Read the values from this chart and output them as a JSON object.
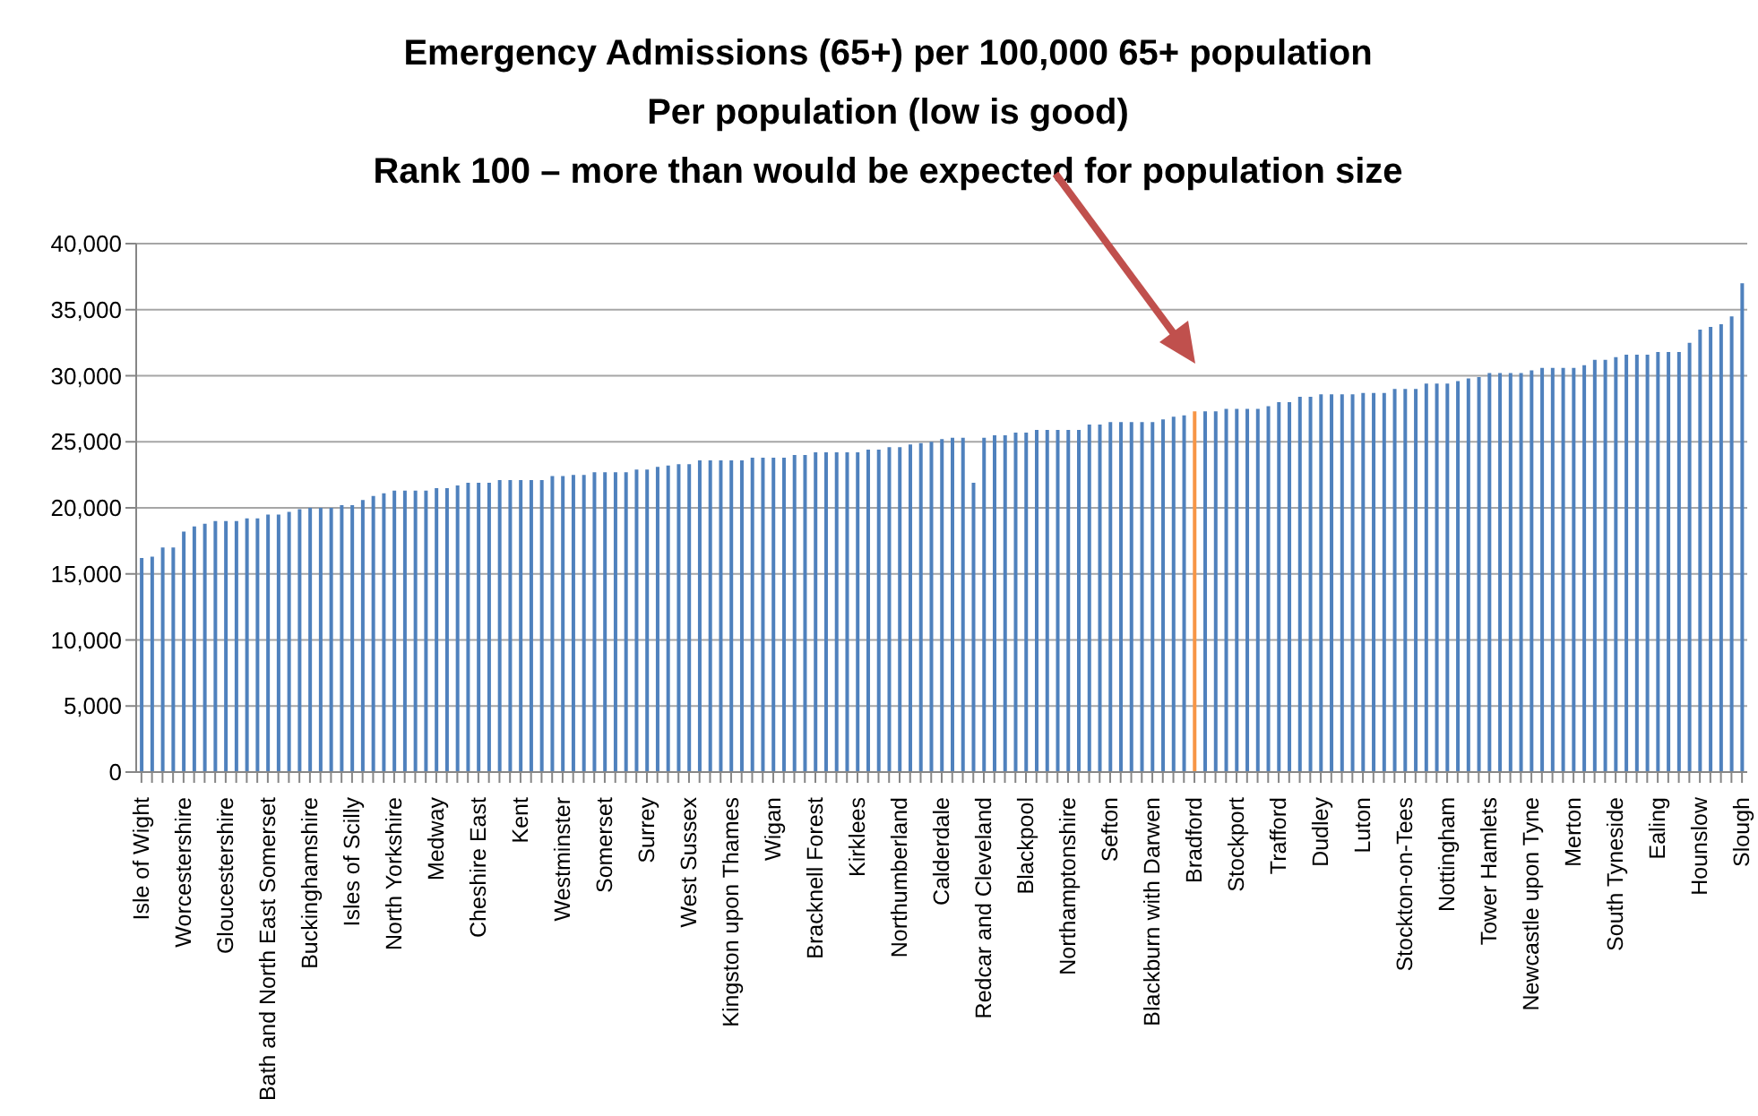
{
  "chart_data": {
    "type": "bar",
    "title": "Emergency Admissions (65+) per 100,000 65+ population\nPer population (low is good)\nRank 100 – more than would be expected for population size",
    "categories": [
      "Isle of Wight",
      null,
      null,
      null,
      "Worcestershire",
      null,
      null,
      null,
      "Gloucestershire",
      null,
      null,
      null,
      "Bath and North East Somerset",
      null,
      null,
      null,
      "Buckinghamshire",
      null,
      null,
      null,
      "Isles of Scilly",
      null,
      null,
      null,
      "North Yorkshire",
      null,
      null,
      null,
      "Medway",
      null,
      null,
      null,
      "Cheshire East",
      null,
      null,
      null,
      "Kent",
      null,
      null,
      null,
      "Westminster",
      null,
      null,
      null,
      "Somerset",
      null,
      null,
      null,
      "Surrey",
      null,
      null,
      null,
      "West Sussex",
      null,
      null,
      null,
      "Kingston upon Thames",
      null,
      null,
      null,
      "Wigan",
      null,
      null,
      null,
      "Bracknell Forest",
      null,
      null,
      null,
      "Kirklees",
      null,
      null,
      null,
      "Northumberland",
      null,
      null,
      null,
      "Calderdale",
      null,
      null,
      null,
      "Redcar and Cleveland",
      null,
      null,
      null,
      "Blackpool",
      null,
      null,
      null,
      "Northamptonshire",
      null,
      null,
      null,
      "Sefton",
      null,
      null,
      null,
      "Blackburn with Darwen",
      null,
      null,
      null,
      "Bradford",
      null,
      null,
      null,
      "Stockport",
      null,
      null,
      null,
      "Trafford",
      null,
      null,
      null,
      "Dudley",
      null,
      null,
      null,
      "Luton",
      null,
      null,
      null,
      "Stockton-on-Tees",
      null,
      null,
      null,
      "Nottingham",
      null,
      null,
      null,
      "Tower Hamlets",
      null,
      null,
      null,
      "Newcastle upon Tyne",
      null,
      null,
      null,
      "Merton",
      null,
      null,
      null,
      "South Tyneside",
      null,
      null,
      null,
      "Ealing",
      null,
      null,
      null,
      "Hounslow",
      null,
      null,
      null,
      "Slough"
    ],
    "values": [
      16200,
      16300,
      17000,
      17000,
      18200,
      18600,
      18800,
      19000,
      19000,
      19000,
      19200,
      19200,
      19500,
      19500,
      19700,
      19900,
      20000,
      20000,
      20000,
      20200,
      20200,
      20600,
      20900,
      21100,
      21300,
      21300,
      21300,
      21300,
      21500,
      21500,
      21700,
      21900,
      21900,
      21900,
      22100,
      22100,
      22100,
      22100,
      22100,
      22400,
      22400,
      22500,
      22500,
      22700,
      22700,
      22700,
      22700,
      22900,
      22900,
      23100,
      23200,
      23300,
      23300,
      23600,
      23600,
      23600,
      23600,
      23600,
      23800,
      23800,
      23800,
      23800,
      24000,
      24000,
      24200,
      24200,
      24200,
      24200,
      24200,
      24400,
      24400,
      24600,
      24600,
      24800,
      24900,
      25000,
      25200,
      25300,
      25300,
      21900,
      25300,
      25500,
      25500,
      25700,
      25700,
      25900,
      25900,
      25900,
      25900,
      25900,
      26300,
      26300,
      26500,
      26500,
      26500,
      26500,
      26500,
      26700,
      26900,
      27000,
      27300,
      27300,
      27300,
      27500,
      27500,
      27500,
      27500,
      27700,
      28000,
      28000,
      28400,
      28400,
      28600,
      28600,
      28600,
      28600,
      28700,
      28700,
      28700,
      29000,
      29000,
      29000,
      29400,
      29400,
      29400,
      29600,
      29800,
      29900,
      30200,
      30200,
      30200,
      30200,
      30400,
      30600,
      30600,
      30600,
      30600,
      30800,
      31200,
      31200,
      31400,
      31600,
      31600,
      31600,
      31800,
      31800,
      31800,
      32500,
      33500,
      33700,
      33900,
      34500,
      37000
    ],
    "colors": [
      "#4f81bd",
      "#4f81bd",
      "#4f81bd",
      "#4f81bd",
      "#4f81bd",
      "#4f81bd",
      "#4f81bd",
      "#4f81bd",
      "#4f81bd",
      "#4f81bd",
      "#4f81bd",
      "#4f81bd",
      "#4f81bd",
      "#4f81bd",
      "#4f81bd",
      "#4f81bd",
      "#4f81bd",
      "#4f81bd",
      "#4f81bd",
      "#4f81bd",
      "#4f81bd",
      "#4f81bd",
      "#4f81bd",
      "#4f81bd",
      "#4f81bd",
      "#4f81bd",
      "#4f81bd",
      "#4f81bd",
      "#4f81bd",
      "#4f81bd",
      "#4f81bd",
      "#4f81bd",
      "#4f81bd",
      "#4f81bd",
      "#4f81bd",
      "#4f81bd",
      "#4f81bd",
      "#4f81bd",
      "#4f81bd",
      "#4f81bd",
      "#4f81bd",
      "#4f81bd",
      "#4f81bd",
      "#4f81bd",
      "#4f81bd",
      "#4f81bd",
      "#4f81bd",
      "#4f81bd",
      "#4f81bd",
      "#4f81bd",
      "#4f81bd",
      "#4f81bd",
      "#4f81bd",
      "#4f81bd",
      "#4f81bd",
      "#4f81bd",
      "#4f81bd",
      "#4f81bd",
      "#4f81bd",
      "#4f81bd",
      "#4f81bd",
      "#4f81bd",
      "#4f81bd",
      "#4f81bd",
      "#4f81bd",
      "#4f81bd",
      "#4f81bd",
      "#4f81bd",
      "#4f81bd",
      "#4f81bd",
      "#4f81bd",
      "#4f81bd",
      "#4f81bd",
      "#4f81bd",
      "#4f81bd",
      "#4f81bd",
      "#4f81bd",
      "#4f81bd",
      "#4f81bd",
      "#4f81bd",
      "#4f81bd",
      "#4f81bd",
      "#4f81bd",
      "#4f81bd",
      "#4f81bd",
      "#4f81bd",
      "#4f81bd",
      "#4f81bd",
      "#4f81bd",
      "#4f81bd",
      "#4f81bd",
      "#4f81bd",
      "#4f81bd",
      "#4f81bd",
      "#4f81bd",
      "#4f81bd",
      "#4f81bd",
      "#4f81bd",
      "#4f81bd",
      "#4f81bd",
      "#f79646",
      "#4f81bd",
      "#4f81bd",
      "#4f81bd",
      "#4f81bd",
      "#4f81bd",
      "#4f81bd",
      "#4f81bd",
      "#4f81bd",
      "#4f81bd",
      "#4f81bd",
      "#4f81bd",
      "#4f81bd",
      "#4f81bd",
      "#4f81bd",
      "#4f81bd",
      "#4f81bd",
      "#4f81bd",
      "#4f81bd",
      "#4f81bd",
      "#4f81bd",
      "#4f81bd",
      "#4f81bd",
      "#4f81bd",
      "#4f81bd",
      "#4f81bd",
      "#4f81bd",
      "#4f81bd",
      "#4f81bd",
      "#4f81bd",
      "#4f81bd",
      "#4f81bd",
      "#4f81bd",
      "#4f81bd",
      "#4f81bd",
      "#4f81bd",
      "#4f81bd",
      "#4f81bd",
      "#4f81bd",
      "#4f81bd",
      "#4f81bd",
      "#4f81bd",
      "#4f81bd",
      "#4f81bd",
      "#4f81bd",
      "#4f81bd",
      "#4f81bd",
      "#4f81bd",
      "#4f81bd",
      "#4f81bd",
      "#4f81bd",
      "#4f81bd",
      "#4f81bd"
    ],
    "ylim": [
      0,
      40000
    ],
    "yticks": [
      0,
      {
        "value": 5000,
        "label": "5,000"
      },
      {
        "value": 10000,
        "label": "10,000"
      },
      {
        "value": 15000,
        "label": "15,000"
      },
      {
        "value": 20000,
        "label": "20,000"
      },
      {
        "value": 25000,
        "label": "25,000"
      },
      {
        "value": 30000,
        "label": "30,000"
      },
      {
        "value": 35000,
        "label": "35,000"
      },
      {
        "value": 40000,
        "label": "40,000"
      }
    ],
    "grid": "y"
  }
}
